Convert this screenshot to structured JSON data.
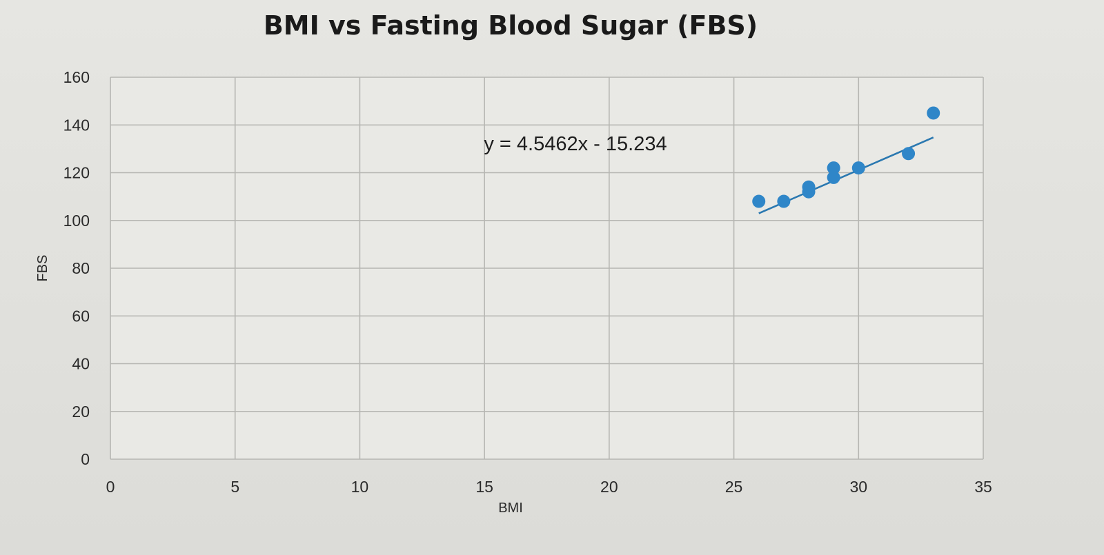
{
  "chart_data": {
    "type": "scatter",
    "title": "BMI vs Fasting Blood Sugar (FBS)",
    "xlabel": "BMI",
    "ylabel": "FBS",
    "xlim": [
      0,
      35
    ],
    "ylim": [
      0,
      160
    ],
    "x_ticks": [
      "0",
      "5",
      "10",
      "15",
      "20",
      "25",
      "30",
      "35"
    ],
    "y_ticks": [
      "0",
      "20",
      "40",
      "60",
      "80",
      "100",
      "120",
      "140",
      "160"
    ],
    "grid": true,
    "legend": "none",
    "series": [
      {
        "x": [
          26,
          27,
          28,
          28,
          29,
          29,
          30,
          32,
          33
        ],
        "y": [
          108,
          108,
          112,
          114,
          118,
          122,
          122,
          128,
          145
        ],
        "color": "#2f86c8"
      }
    ],
    "trendline": {
      "type": "linear",
      "slope": 4.5462,
      "intercept": -15.234,
      "x_range": [
        26,
        33
      ],
      "equation": "y = 4.5462x - 15.234",
      "color": "#2a78b0"
    }
  }
}
